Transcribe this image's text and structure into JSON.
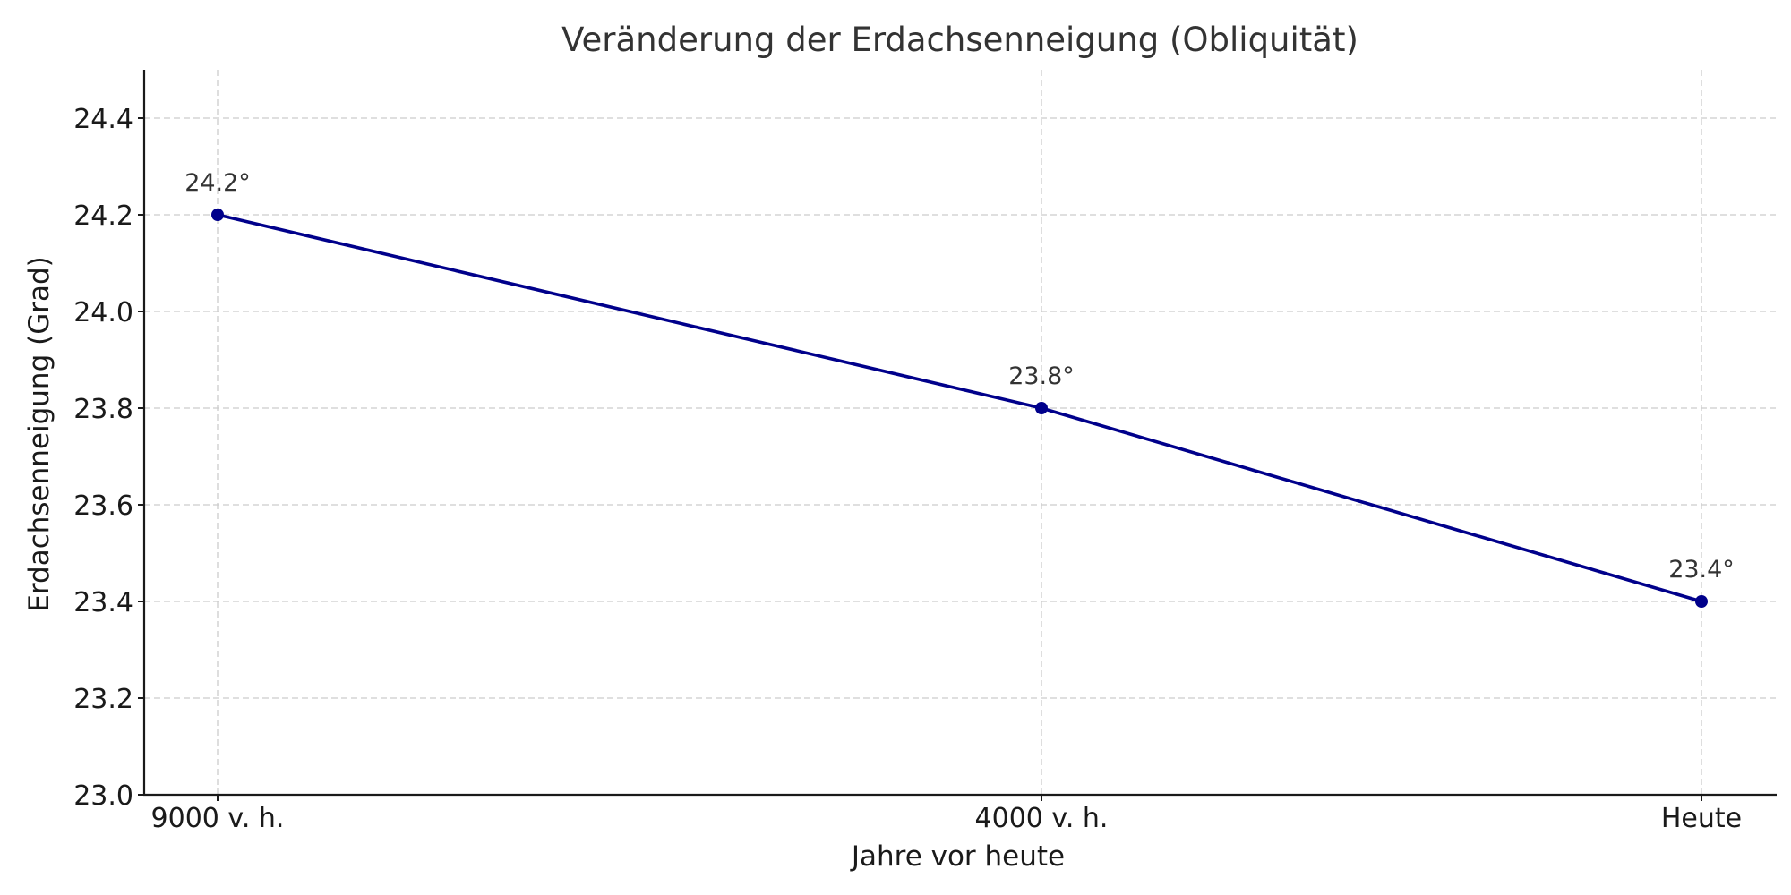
{
  "chart_data": {
    "type": "line",
    "title": "Veränderung der Erdachsenneigung (Obliquität)",
    "xlabel": "Jahre vor heute",
    "ylabel": "Erdachsenneigung (Grad)",
    "categories": [
      "9000 v. h.",
      "4000 v. h.",
      "Heute"
    ],
    "x": [
      -9000,
      -4000,
      0
    ],
    "series": [
      {
        "values": [
          24.2,
          23.8,
          23.4
        ],
        "labels": [
          "24.2°",
          "23.8°",
          "23.4°"
        ],
        "color": "#00008b"
      }
    ],
    "ylim": [
      23.0,
      24.5
    ],
    "yticks": [
      23.0,
      23.2,
      23.4,
      23.6,
      23.8,
      24.0,
      24.2,
      24.4
    ],
    "ytick_labels": [
      "23.0",
      "23.2",
      "23.4",
      "23.6",
      "23.8",
      "24.0",
      "24.2",
      "24.4"
    ],
    "grid": true,
    "legend": false
  }
}
